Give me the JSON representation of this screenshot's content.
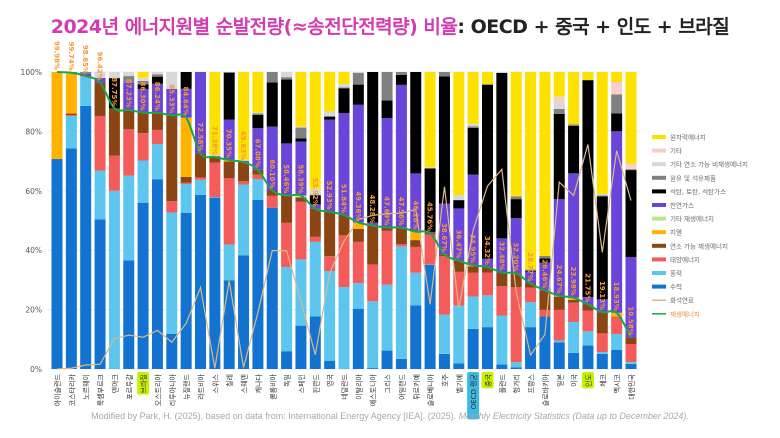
{
  "title": {
    "highlight": "2024년 에너지원별 순발전량(≈송전단전력량) 비율",
    "rest": ": OECD + 중국 + 인도 + 브라질"
  },
  "footer": {
    "text": "Modified by Park, H. (2025), based on data from: International Energy Agency [IEA]. (2025). ",
    "italic": "Monthly Electricity Statistics (Data up to December 2024)."
  },
  "chart_data": {
    "type": "bar",
    "stacked": true,
    "ylim": [
      0,
      100
    ],
    "yticks": [
      "0%",
      "20%",
      "40%",
      "60%",
      "80%",
      "100%"
    ],
    "grid": true,
    "legend_position": "right",
    "categories": [
      "아이슬란드",
      "코스타리카",
      "노르웨이",
      "룩셈부르크",
      "덴마크",
      "포르투갈",
      "브라질",
      "오스트리아",
      "리투아니아",
      "뉴질랜드",
      "라트비아",
      "스위스",
      "칠레",
      "스웨덴",
      "캐나다",
      "콜롬비아",
      "독일",
      "스페인",
      "핀란드",
      "영국",
      "네덜란드",
      "이탈리아",
      "에스토니아",
      "그리스",
      "아일랜드",
      "튀르키예",
      "슬로베니아",
      "호주",
      "벨기에",
      "OECD 평균",
      "중국",
      "폴란드",
      "헝가리",
      "프랑스",
      "슬로바키아",
      "일본",
      "미국",
      "인도",
      "체코",
      "멕시코",
      "대한민국"
    ],
    "highlights": {
      "브라질": "#C8F000",
      "중국": "#C8F000",
      "인도": "#C8F000",
      "OECD 평균": "#3DB9E6"
    },
    "renewable_labels": [
      "99.98%",
      "99.74%",
      "98.65%",
      "96.42%",
      "87.75%",
      "87.23%",
      "86.30%",
      "86.24%",
      "85.33%",
      "84.64%",
      "72.58%",
      "71.38%",
      "70.35%",
      "69.63%",
      "67.08%",
      "60.10%",
      "58.46%",
      "58.39%",
      "53.92%",
      "52.93%",
      "51.84%",
      "49.36%",
      "48.28%",
      "47.69%",
      "47.56%",
      "46.26%",
      "45.76%",
      "38.67%",
      "36.47%",
      "34.95%",
      "34.32%",
      "32.48%",
      "32.20%",
      "28.77%",
      "26.46%",
      "24.67%",
      "23.98%",
      "21.75%",
      "19.13%",
      "18.93%",
      "10.58%"
    ],
    "series": [
      {
        "name": "수력",
        "color": "#1273D0",
        "renewable": true,
        "values": [
          70.7,
          74.3,
          88.6,
          50.4,
          0.1,
          36.6,
          56.0,
          63.9,
          11.8,
          52.6,
          58.6,
          57.7,
          29.8,
          38.3,
          56.9,
          54.3,
          6.0,
          14.6,
          17.7,
          2.8,
          0.1,
          20.3,
          0.3,
          6.2,
          3.4,
          21.4,
          35.1,
          5.1,
          1.9,
          13.5,
          14.1,
          1.5,
          0.5,
          14.1,
          17.7,
          9.0,
          5.4,
          7.9,
          5.1,
          6.4,
          1.7
        ]
      },
      {
        "name": "풍력",
        "color": "#5CC6EF",
        "renewable": true,
        "values": [
          0,
          10.9,
          9.8,
          16.4,
          59.9,
          28.5,
          14.2,
          11.8,
          40.9,
          9.7,
          5.1,
          0.2,
          12.1,
          23.8,
          7.0,
          0,
          28.3,
          22.3,
          25.1,
          30.2,
          27.5,
          8.6,
          22.5,
          22.2,
          37.9,
          11.0,
          0.1,
          13.2,
          19.5,
          10.9,
          10.7,
          16.5,
          1.8,
          8.4,
          0,
          0.6,
          10.4,
          4.8,
          0.6,
          5.4,
          0.6
        ]
      },
      {
        "name": "태양에너지",
        "color": "#F45B5B",
        "renewable": true,
        "values": [
          0,
          0.3,
          0.2,
          18.4,
          11.8,
          15.6,
          9.2,
          4.8,
          3.8,
          0.4,
          0.8,
          11.6,
          22.3,
          1.1,
          1.5,
          4.0,
          14.9,
          19.4,
          1.7,
          5.0,
          17.4,
          13.9,
          12.4,
          18.1,
          0.7,
          8.7,
          10.1,
          19.77,
          11.3,
          8.0,
          7.6,
          9.9,
          25.3,
          4.9,
          2.2,
          10.3,
          6.5,
          7.0,
          6.3,
          5.7,
          6.1
        ]
      },
      {
        "name": "연소 가능 재생에너지",
        "color": "#8B4513",
        "renewable": true,
        "values": [
          0,
          0.5,
          0.05,
          11.22,
          15.95,
          6.53,
          6.9,
          5.74,
          28.83,
          2.0,
          8.08,
          1.88,
          5.65,
          6.43,
          1.68,
          1.8,
          9.26,
          1.5,
          9.42,
          14.93,
          6.84,
          4.36,
          13.08,
          1.19,
          5.56,
          2.3,
          0.46,
          0.6,
          3.77,
          2.2,
          1.92,
          4.58,
          4.6,
          1.37,
          6.56,
          4.47,
          1.0,
          2.05,
          7.13,
          0.13,
          2.18
        ]
      },
      {
        "name": "지열",
        "color": "#FFB300",
        "renewable": true,
        "values": [
          29.28,
          13.74,
          0,
          0,
          0,
          0,
          0,
          0,
          0,
          19.94,
          0,
          0,
          0.5,
          0,
          0,
          0,
          0,
          0,
          0,
          0,
          0,
          2.2,
          0,
          0,
          0,
          2.86,
          0,
          0,
          0,
          0.35,
          0,
          0,
          0,
          0,
          0,
          0.3,
          0.68,
          0,
          0,
          1.3,
          0
        ]
      },
      {
        "name": "기타 재생에너지",
        "color": "#B8E68C",
        "renewable": true,
        "values": [
          0,
          0,
          0,
          0,
          0,
          0,
          0,
          0,
          0,
          0,
          0,
          0,
          0,
          0,
          0,
          0,
          0,
          0.59,
          0,
          0,
          0,
          0,
          0,
          0,
          0,
          0,
          0,
          0,
          0,
          0,
          0,
          0,
          0,
          0,
          0,
          0,
          0,
          0,
          0,
          0,
          0
        ]
      },
      {
        "name": "천연가스",
        "color": "#6A45DA",
        "fossil": true,
        "values": [
          0,
          0,
          0.8,
          1.6,
          0,
          9.2,
          8.0,
          9.8,
          9.0,
          9.7,
          27.42,
          0.3,
          13.6,
          0.4,
          14.0,
          21.5,
          17.5,
          18.2,
          1.5,
          31.0,
          34.3,
          39.6,
          1.0,
          36.8,
          48.1,
          19.6,
          0.4,
          17.0,
          17.6,
          30.5,
          2.8,
          11.5,
          18.6,
          4.0,
          9.3,
          32.5,
          41.9,
          2.5,
          4.3,
          61.1,
          27.1
        ]
      },
      {
        "name": "석탄, 토탄, 석탄가스",
        "color": "#000000",
        "fossil": true,
        "values": [
          0,
          0,
          0,
          0,
          10.2,
          0,
          1.5,
          2.4,
          0,
          5.66,
          0,
          0,
          15.8,
          0,
          4.5,
          14.9,
          21.5,
          1.1,
          3.0,
          1.0,
          8.4,
          6.8,
          50.72,
          5.9,
          3.4,
          34.14,
          21.4,
          42.83,
          2.8,
          15.7,
          58.5,
          55.72,
          6.4,
          0.3,
          1.5,
          28.7,
          16.0,
          73.0,
          34.7,
          6.0,
          29.3
        ]
      },
      {
        "name": "원유 및 석유제품",
        "color": "#808080",
        "fossil": true,
        "values": [
          0.02,
          0.26,
          0.55,
          0,
          0,
          2.2,
          1.2,
          0.8,
          0,
          0,
          0,
          0,
          0.25,
          0.1,
          0.5,
          3.5,
          0.8,
          3.6,
          0.3,
          0.3,
          0.3,
          3.9,
          0,
          9.61,
          0.94,
          0,
          0,
          1.5,
          0,
          0.6,
          0.3,
          0,
          0.9,
          0.4,
          0.8,
          1.7,
          0.5,
          0.1,
          0.3,
          6.4,
          0.3
        ]
      },
      {
        "name": "기타 연소 가능 비재생에너지",
        "color": "#D8D8D8",
        "values": [
          0,
          0,
          0,
          1.98,
          2.05,
          1.37,
          0.9,
          0.76,
          5.67,
          0,
          0,
          0.4,
          0,
          0.3,
          0.3,
          0,
          1.74,
          0.3,
          2.0,
          1.5,
          1.1,
          0.34,
          0,
          0,
          0,
          0,
          0.36,
          0,
          1.7,
          0.8,
          0,
          0.3,
          0,
          0,
          0,
          2.2,
          0,
          0,
          0.5,
          0,
          0
        ]
      },
      {
        "name": "기타",
        "color": "#F6D0C8",
        "values": [
          0,
          0,
          0,
          0,
          0,
          0,
          0.2,
          0,
          0,
          0,
          0,
          0,
          0,
          0,
          0,
          0,
          0,
          0,
          0,
          0,
          0,
          0,
          0,
          0,
          0,
          0,
          0,
          0,
          0,
          0,
          0,
          0,
          0,
          0,
          0,
          2.0,
          0,
          0,
          0,
          4.2,
          1.9
        ]
      },
      {
        "name": "원자력에너지",
        "color": "#FFE100",
        "values": [
          0,
          0,
          0,
          0,
          0,
          0,
          1.9,
          0,
          0,
          0,
          0,
          27.92,
          0,
          29.57,
          13.62,
          0,
          0,
          18.41,
          39.28,
          13.27,
          4.06,
          0,
          0,
          0,
          0,
          0,
          32.08,
          0,
          41.43,
          17.45,
          4.08,
          0,
          41.9,
          66.53,
          61.94,
          8.23,
          17.62,
          2.65,
          41.07,
          3.37,
          30.82
        ]
      }
    ],
    "lines": [
      {
        "name": "화석연료",
        "color": "#D9B987",
        "of": "fossil"
      },
      {
        "name": "재생에너지",
        "color": "#1BA548",
        "of": "renewable"
      }
    ],
    "legend": [
      "원자력에너지",
      "기타",
      "기타 연소 가능 비재생에너지",
      "원유 및 석유제품",
      "석탄, 토탄, 석탄가스",
      "천연가스",
      "기타 재생에너지",
      "지열",
      "연소 가능 재생에너지",
      "태양에너지",
      "풍력",
      "수력",
      "화석연료",
      "재생에너지"
    ],
    "label_color": "#F39A3B"
  }
}
